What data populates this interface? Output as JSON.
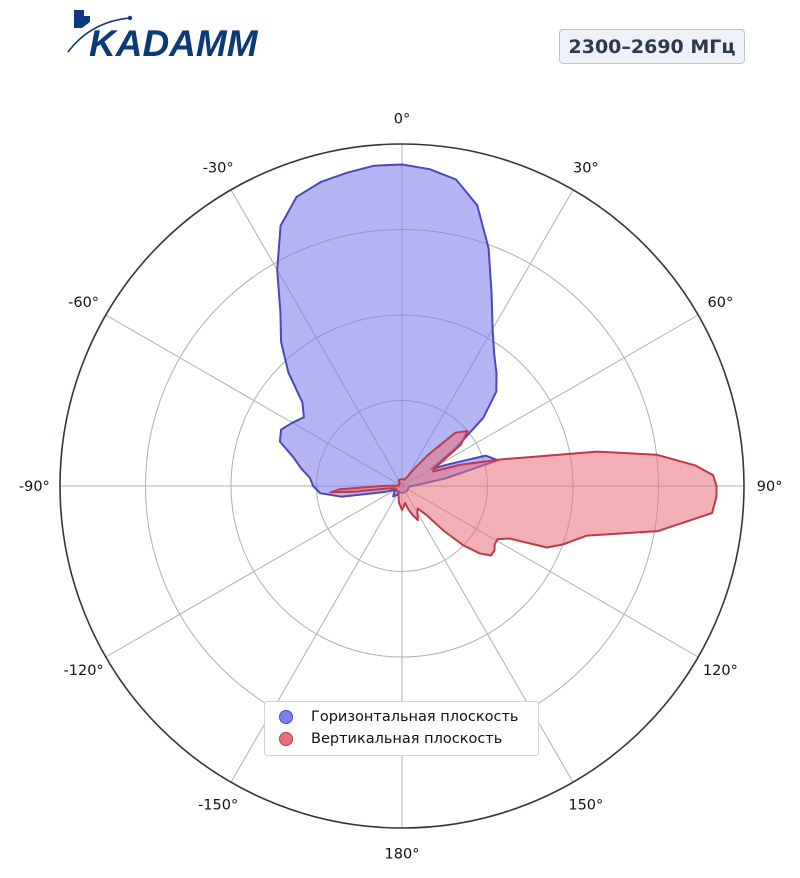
{
  "brand": {
    "name": "KADAMM",
    "logo_color": "#0a3a7a"
  },
  "band_label": "2300–2690 МГц",
  "chart_data": {
    "type": "polar_area",
    "angle_unit": "deg",
    "angle_ticks": [
      0,
      30,
      60,
      90,
      120,
      150,
      180,
      -150,
      -120,
      -90,
      -60,
      -30
    ],
    "angle_tick_labels": [
      "0°",
      "30°",
      "60°",
      "90°",
      "120°",
      "150°",
      "180°",
      "-150°",
      "-120°",
      "-90°",
      "-60°",
      "-30°"
    ],
    "direction": "clockwise",
    "zero_location": "top",
    "r_range": [
      0,
      1
    ],
    "r_gridlines": [
      0.25,
      0.5,
      0.75,
      1.0
    ],
    "r_tick_labels_shown": false,
    "grid": true,
    "legend_position": "bottom-center",
    "series": [
      {
        "name": "Горизонтальная плоскость",
        "fill_color": "#8080f0",
        "line_color": "#4a48b8",
        "fill_opacity": 0.58,
        "angles": [
          -180,
          -170,
          -160,
          -150,
          -140,
          -130,
          -120,
          -110,
          -100,
          -95,
          -90,
          -85,
          -80,
          -75,
          -70,
          -65,
          -60,
          -55,
          -50,
          -45,
          -40,
          -35,
          -30,
          -25,
          -20,
          -15,
          -10,
          -5,
          0,
          5,
          10,
          15,
          20,
          25,
          30,
          35,
          40,
          45,
          50,
          55,
          60,
          65,
          70,
          75,
          80,
          85,
          90,
          95,
          100,
          110,
          120,
          130,
          140,
          150,
          160,
          170,
          180
        ],
        "values": [
          0.02,
          0.02,
          0.02,
          0.03,
          0.04,
          0.03,
          0.02,
          0.05,
          0.18,
          0.24,
          0.26,
          0.27,
          0.3,
          0.33,
          0.38,
          0.39,
          0.37,
          0.35,
          0.38,
          0.47,
          0.55,
          0.62,
          0.73,
          0.84,
          0.9,
          0.92,
          0.93,
          0.94,
          0.94,
          0.93,
          0.91,
          0.85,
          0.74,
          0.62,
          0.53,
          0.47,
          0.43,
          0.39,
          0.31,
          0.19,
          0.1,
          0.15,
          0.26,
          0.29,
          0.13,
          0.05,
          0.03,
          0.02,
          0.02,
          0.02,
          0.02,
          0.02,
          0.02,
          0.02,
          0.02,
          0.02,
          0.02
        ]
      },
      {
        "name": "Вертикальная плоскость",
        "fill_color": "#e8707a",
        "line_color": "#c0394a",
        "fill_opacity": 0.55,
        "angles": [
          -180,
          -170,
          -160,
          -150,
          -140,
          -130,
          -120,
          -110,
          -100,
          -97,
          -95,
          -93,
          -90,
          -87,
          -85,
          -80,
          -70,
          -60,
          -50,
          -40,
          -30,
          -20,
          -10,
          0,
          10,
          20,
          30,
          35,
          40,
          45,
          50,
          55,
          60,
          65,
          70,
          75,
          80,
          83,
          86,
          88,
          90,
          92,
          95,
          100,
          105,
          110,
          113,
          116,
          119,
          122,
          125,
          128,
          131,
          134,
          137,
          140,
          145,
          150,
          155,
          160,
          165,
          170,
          175,
          180
        ],
        "values": [
          0.07,
          0.05,
          0.03,
          0.02,
          0.02,
          0.02,
          0.02,
          0.02,
          0.04,
          0.14,
          0.21,
          0.18,
          0.06,
          0.02,
          0.01,
          0.01,
          0.01,
          0.01,
          0.01,
          0.01,
          0.02,
          0.02,
          0.02,
          0.02,
          0.02,
          0.02,
          0.03,
          0.06,
          0.12,
          0.22,
          0.25,
          0.21,
          0.12,
          0.1,
          0.18,
          0.3,
          0.58,
          0.75,
          0.86,
          0.91,
          0.92,
          0.92,
          0.91,
          0.76,
          0.56,
          0.5,
          0.46,
          0.35,
          0.32,
          0.32,
          0.33,
          0.33,
          0.3,
          0.25,
          0.18,
          0.11,
          0.08,
          0.09,
          0.11,
          0.09,
          0.07,
          0.05,
          0.06,
          0.07
        ]
      }
    ]
  }
}
